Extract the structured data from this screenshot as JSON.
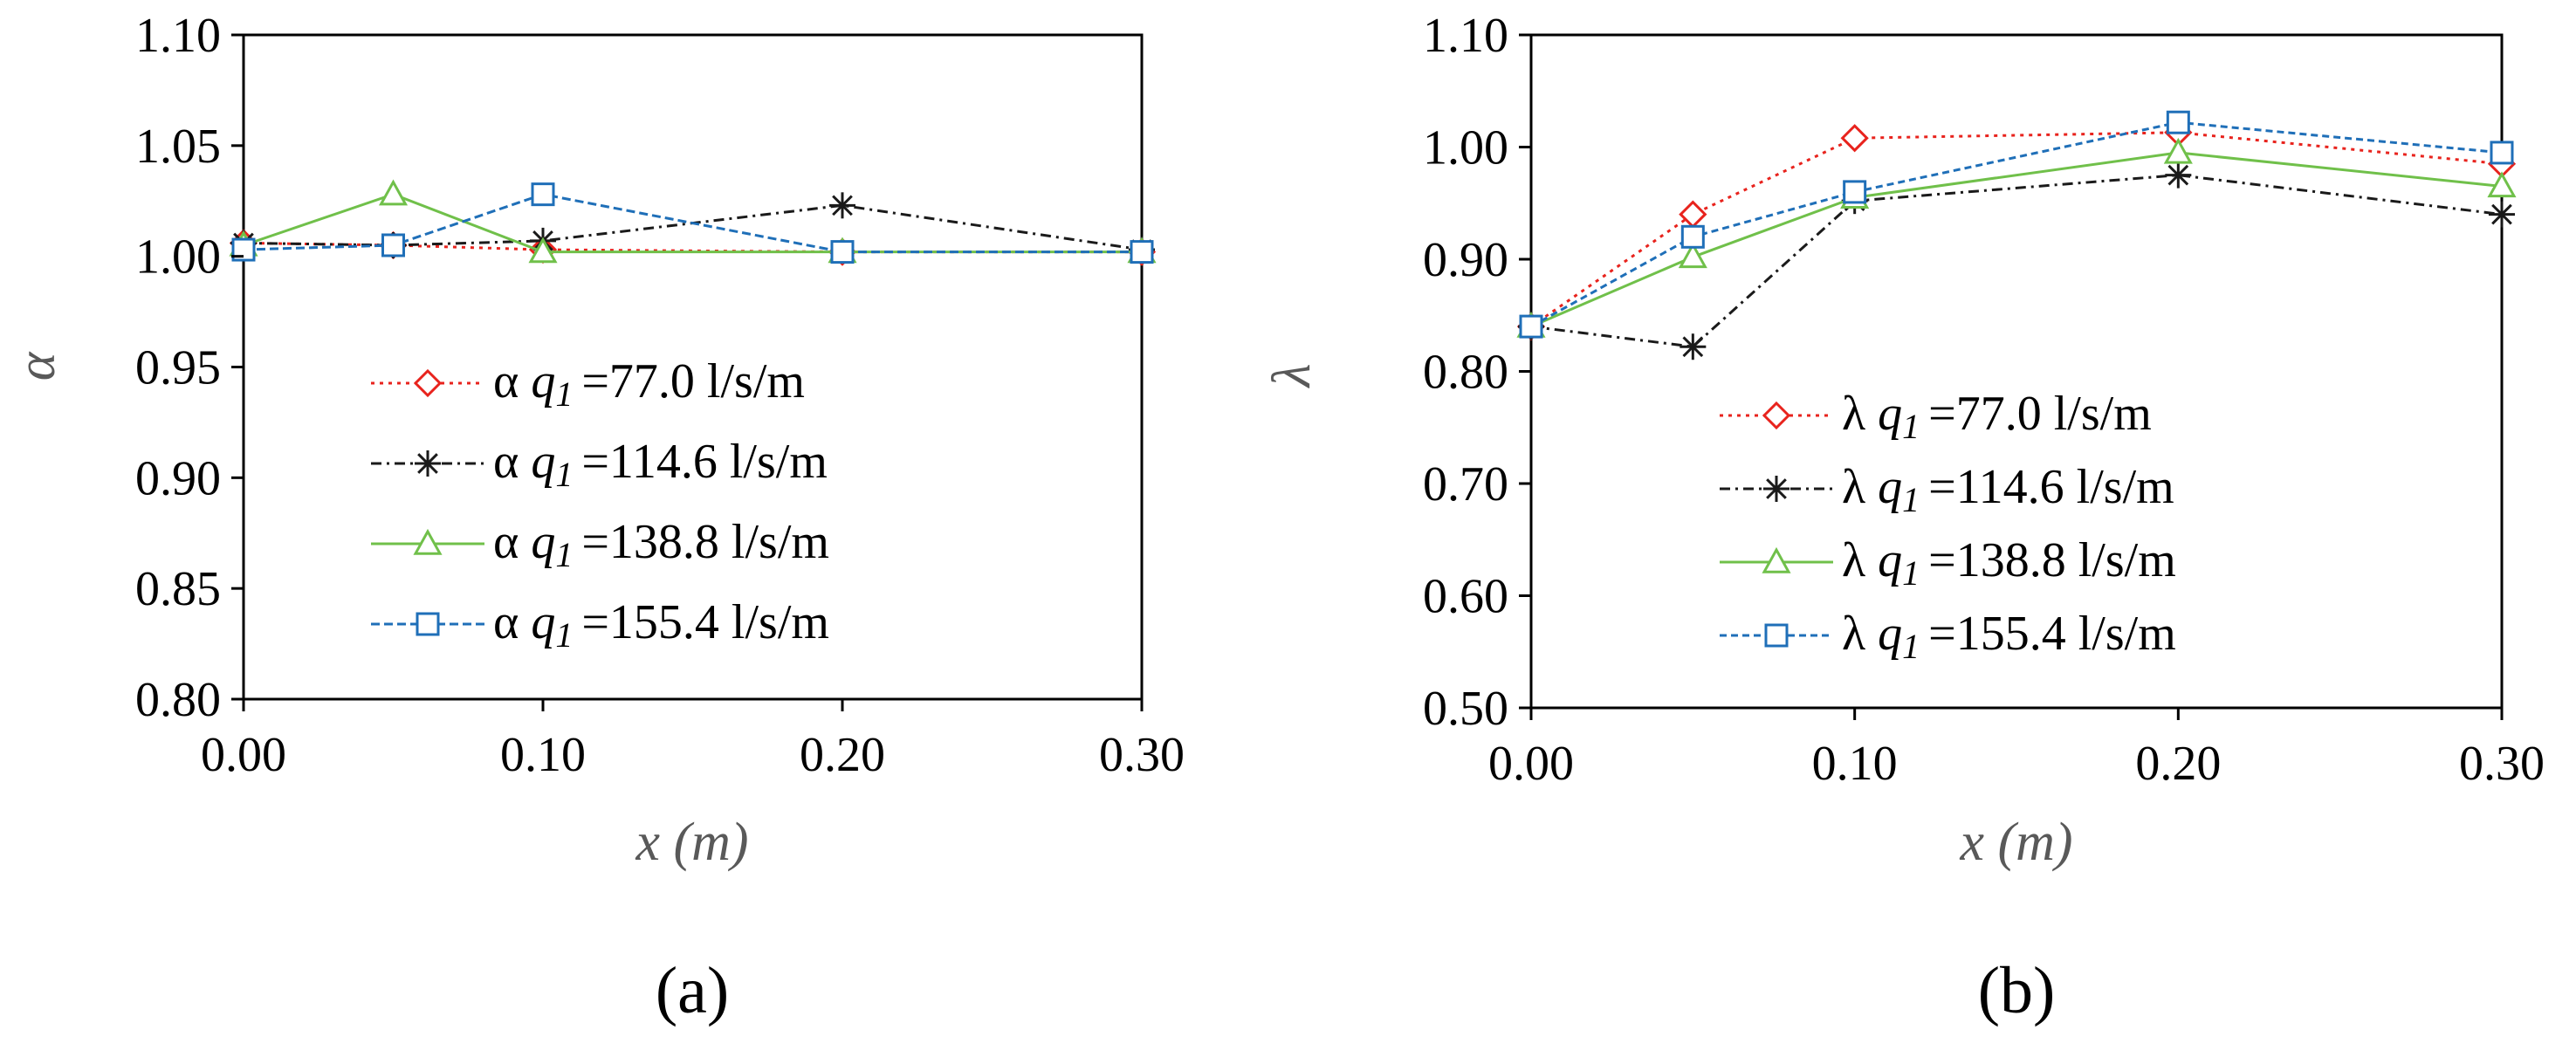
{
  "chart_data": [
    {
      "type": "line",
      "panel_label": "(a)",
      "xlabel": "x (m)",
      "ylabel": "α",
      "ylim": [
        0.8,
        1.1
      ],
      "xlim": [
        0.0,
        0.3
      ],
      "x_ticks": [
        "0.00",
        "0.10",
        "0.20",
        "0.30"
      ],
      "x_tick_values": [
        0.0,
        0.1,
        0.2,
        0.3
      ],
      "y_ticks": [
        "0.80",
        "0.85",
        "0.90",
        "0.95",
        "1.00",
        "1.05",
        "1.10"
      ],
      "y_tick_values": [
        0.8,
        0.85,
        0.9,
        0.95,
        1.0,
        1.05,
        1.1
      ],
      "legend_position": "lower-right",
      "x": [
        0.0,
        0.05,
        0.1,
        0.2,
        0.3
      ],
      "series": [
        {
          "name": "α q1 =77.0 l/s/m",
          "symbol": "α",
          "q": "q",
          "sub": "1",
          "value": "=77.0 l/s/m",
          "color": "#e8231d",
          "marker": "diamond",
          "dash": "4,6",
          "values": [
            1.006,
            1.005,
            1.003,
            1.002,
            1.002
          ]
        },
        {
          "name": "α q1 =114.6 l/s/m",
          "symbol": "α",
          "q": "q",
          "sub": "1",
          "value": "=114.6 l/s/m",
          "color": "#1a1a1a",
          "marker": "asterisk",
          "dash": "12,6,3,6",
          "values": [
            1.006,
            1.005,
            1.007,
            1.023,
            1.003
          ]
        },
        {
          "name": "α q1 =138.8 l/s/m",
          "symbol": "α",
          "q": "q",
          "sub": "1",
          "value": "=138.8 l/s/m",
          "color": "#70c04a",
          "marker": "triangle",
          "dash": "",
          "values": [
            1.005,
            1.028,
            1.002,
            1.002,
            1.002
          ]
        },
        {
          "name": "α q1 =155.4 l/s/m",
          "symbol": "α",
          "q": "q",
          "sub": "1",
          "value": "=155.4 l/s/m",
          "color": "#1f6fb8",
          "marker": "square",
          "dash": "10,5",
          "values": [
            1.003,
            1.005,
            1.028,
            1.002,
            1.002
          ]
        }
      ]
    },
    {
      "type": "line",
      "panel_label": "(b)",
      "xlabel": "x (m)",
      "ylabel": "λ",
      "ylim": [
        0.5,
        1.1
      ],
      "xlim": [
        0.0,
        0.3
      ],
      "x_ticks": [
        "0.00",
        "0.10",
        "0.20",
        "0.30"
      ],
      "x_tick_values": [
        0.0,
        0.1,
        0.2,
        0.3
      ],
      "y_ticks": [
        "0.50",
        "0.60",
        "0.70",
        "0.80",
        "0.90",
        "1.00",
        "1.10"
      ],
      "y_tick_values": [
        0.5,
        0.6,
        0.7,
        0.8,
        0.9,
        1.0,
        1.1
      ],
      "legend_position": "lower-right",
      "x": [
        0.0,
        0.05,
        0.1,
        0.2,
        0.3
      ],
      "series": [
        {
          "name": "λ q1 =77.0 l/s/m",
          "symbol": "λ",
          "q": "q",
          "sub": "1",
          "value": "=77.0 l/s/m",
          "color": "#e8231d",
          "marker": "diamond",
          "dash": "4,6",
          "values": [
            0.84,
            0.94,
            1.008,
            1.013,
            0.985
          ]
        },
        {
          "name": "λ q1 =114.6 l/s/m",
          "symbol": "λ",
          "q": "q",
          "sub": "1",
          "value": "=114.6 l/s/m",
          "color": "#1a1a1a",
          "marker": "asterisk",
          "dash": "12,6,3,6",
          "values": [
            0.84,
            0.822,
            0.952,
            0.975,
            0.94
          ]
        },
        {
          "name": "λ q1 =138.8 l/s/m",
          "symbol": "λ",
          "q": "q",
          "sub": "1",
          "value": "=138.8 l/s/m",
          "color": "#70c04a",
          "marker": "triangle",
          "dash": "",
          "values": [
            0.84,
            0.902,
            0.955,
            0.995,
            0.965
          ]
        },
        {
          "name": "λ q1 =155.4 l/s/m",
          "symbol": "λ",
          "q": "q",
          "sub": "1",
          "value": "=155.4 l/s/m",
          "color": "#1f6fb8",
          "marker": "square",
          "dash": "8,5",
          "values": [
            0.84,
            0.92,
            0.96,
            1.022,
            0.995
          ]
        }
      ]
    }
  ]
}
